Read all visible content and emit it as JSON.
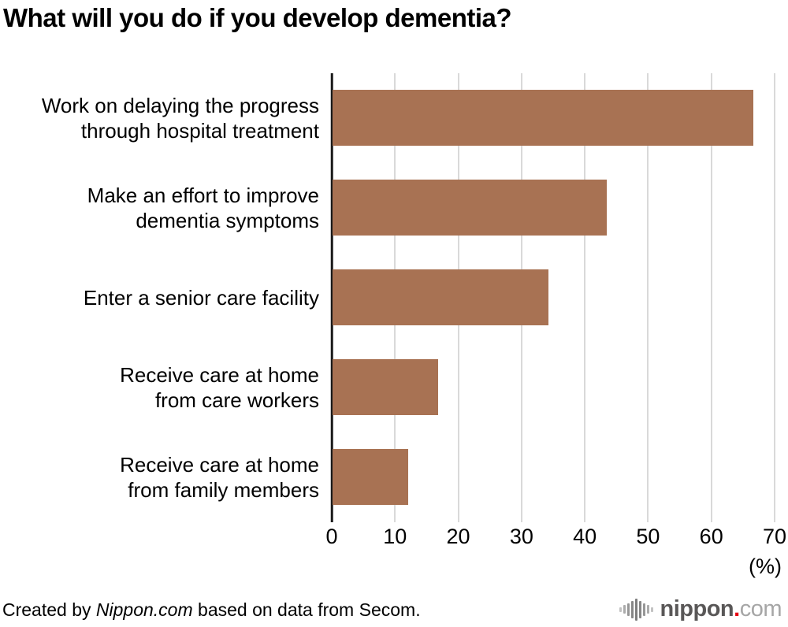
{
  "chart_data": {
    "type": "bar",
    "orientation": "horizontal",
    "title": "What will you do if you develop dementia?",
    "categories": [
      "Work on delaying the progress through hospital treatment",
      "Make an effort to improve dementia symptoms",
      "Enter a senior care facility",
      "Receive care at home from care workers",
      "Receive care at home from family members"
    ],
    "categories_lines": [
      [
        "Work on delaying the progress",
        "through hospital treatment"
      ],
      [
        "Make an effort to improve",
        "dementia symptoms"
      ],
      [
        "Enter a senior care facility"
      ],
      [
        "Receive care at home",
        "from care workers"
      ],
      [
        "Receive care at home",
        "from family members"
      ]
    ],
    "values": [
      66.5,
      43.4,
      34.1,
      16.7,
      12.0
    ],
    "xlim": [
      0,
      70
    ],
    "x_ticks": [
      0,
      10,
      20,
      30,
      40,
      50,
      60,
      70
    ],
    "x_tick_labels": [
      "0",
      "10",
      "20",
      "30",
      "40",
      "50",
      "60",
      "70"
    ],
    "x_unit_label": "(%)",
    "grid": true,
    "legend": "none",
    "bar_color": "#a87253",
    "grid_color": "#d9d9d9",
    "axis_color": "#1a1a1a"
  },
  "footer": {
    "credit": {
      "prefix": "Created by ",
      "source_italic": "Nippon.com",
      "suffix": " based on data from Secom."
    },
    "logo": {
      "name": "nippon.com",
      "icon": "soundwave-bars-icon",
      "text_main": "nippon",
      "text_dot": ".",
      "text_com": "com",
      "colors": {
        "main": "#595757",
        "dot": "#e60012",
        "com": "#a6a6a6"
      }
    }
  }
}
